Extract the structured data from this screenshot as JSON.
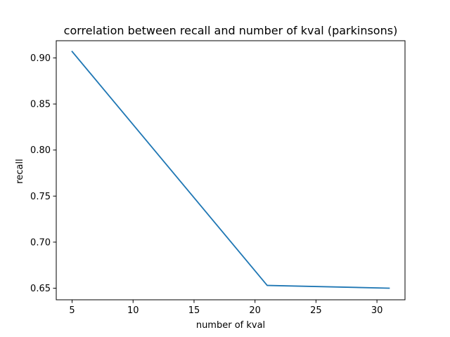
{
  "chart_data": {
    "type": "line",
    "title": "correlation between recall and number of kval (parkinsons)",
    "xlabel": "number of kval",
    "ylabel": "recall",
    "xlim": [
      3.7,
      32.3
    ],
    "ylim": [
      0.6374,
      0.9187
    ],
    "xticks": [
      5,
      10,
      15,
      20,
      25,
      30
    ],
    "yticks": [
      0.65,
      0.7,
      0.75,
      0.8,
      0.85,
      0.9
    ],
    "xtick_labels": [
      "5",
      "10",
      "15",
      "20",
      "25",
      "30"
    ],
    "ytick_labels": [
      "0.65",
      "0.70",
      "0.75",
      "0.80",
      "0.85",
      "0.90"
    ],
    "grid": false,
    "series": [
      {
        "color": "#1f77b4",
        "x": [
          5,
          21,
          31
        ],
        "y": [
          0.907,
          0.653,
          0.65
        ]
      }
    ]
  }
}
